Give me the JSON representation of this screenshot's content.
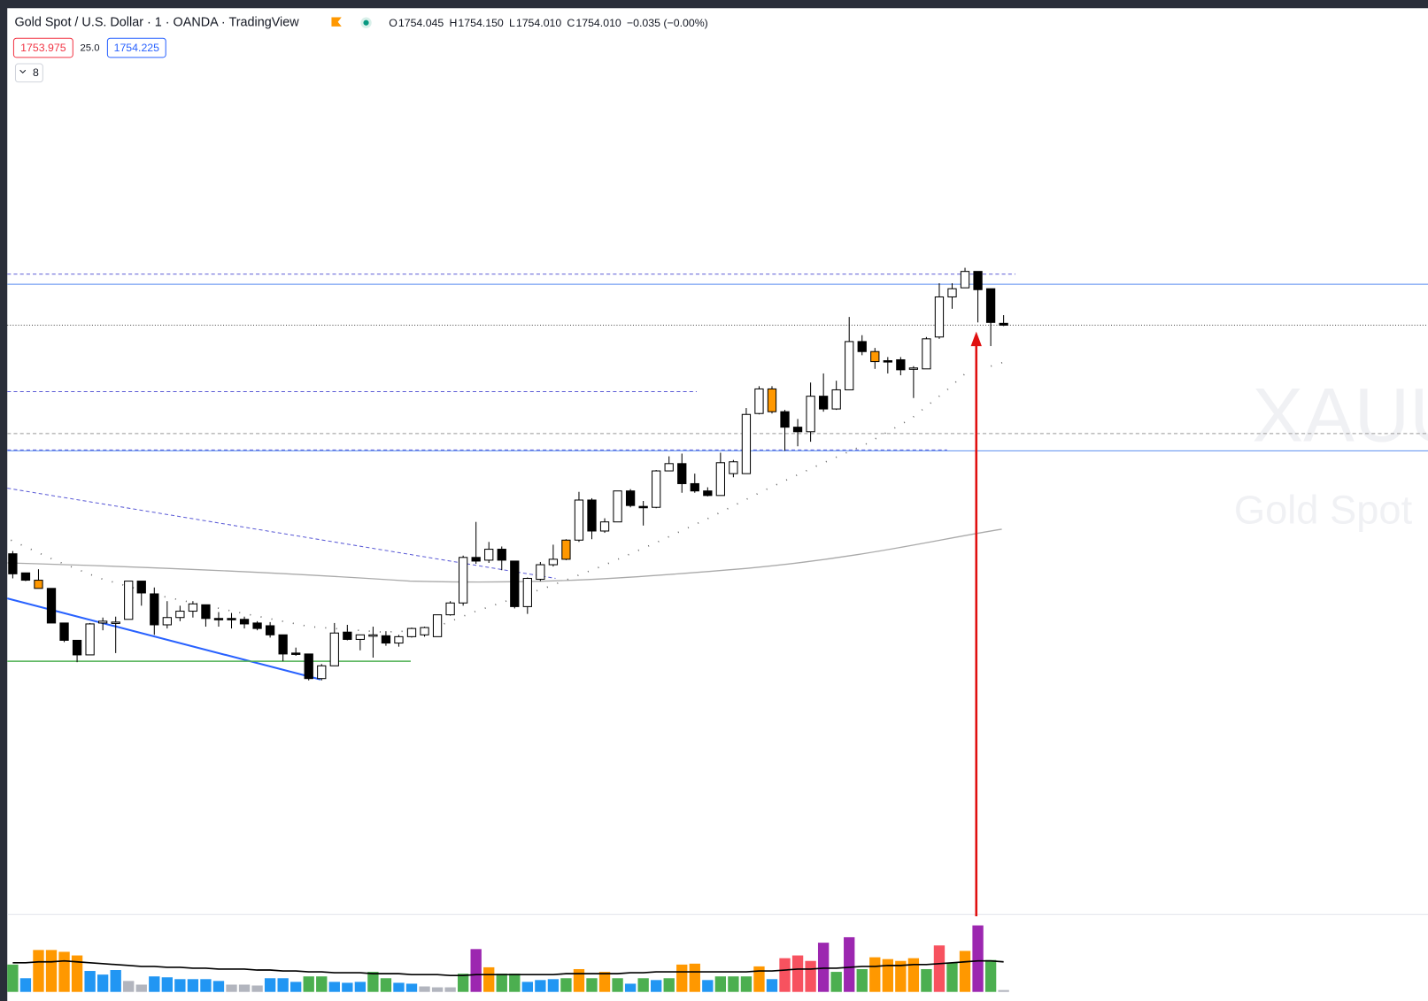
{
  "header": {
    "symbol": "Gold Spot / U.S. Dollar · 1 · OANDA · TradingView",
    "ohlc": [
      {
        "label": "O",
        "value": "1754.045"
      },
      {
        "label": "H",
        "value": "1754.150"
      },
      {
        "label": "L",
        "value": "1754.010"
      },
      {
        "label": "C",
        "value": "1754.010"
      }
    ],
    "change": "−0.035 (−0.00%)",
    "bid": "1753.975",
    "spread": "25.0",
    "ask": "1754.225",
    "indicators": "8"
  },
  "watermark": {
    "ticker": "XAUUSD",
    "name": "Gold Spot"
  },
  "chart_data": {
    "type": "candlestick",
    "open": [
      1751.5,
      1751.29,
      1751.21,
      1751.12,
      1750.74,
      1750.55,
      1750.39,
      1750.74,
      1750.74,
      1750.78,
      1751.2,
      1751.06,
      1750.72,
      1750.8,
      1750.87,
      1750.94,
      1750.79,
      1750.79,
      1750.78,
      1750.74,
      1750.71,
      1750.61,
      1750.41,
      1750.4,
      1750.13,
      1750.27,
      1750.64,
      1750.56,
      1750.61,
      1750.6,
      1750.52,
      1750.59,
      1750.61,
      1750.59,
      1750.83,
      1750.96,
      1751.46,
      1751.43,
      1751.55,
      1751.42,
      1750.92,
      1751.22,
      1751.38,
      1751.44,
      1751.65,
      1752.09,
      1751.75,
      1751.85,
      1752.19,
      1752.02,
      1752.01,
      1752.41,
      1752.49,
      1752.27,
      1752.19,
      1752.14,
      1752.38,
      1752.38,
      1753.04,
      1753.31,
      1753.06,
      1752.89,
      1752.84,
      1753.23,
      1753.09,
      1753.3,
      1753.83,
      1753.72,
      1753.62,
      1753.63,
      1753.54,
      1753.53,
      1753.88,
      1754.32,
      1754.42,
      1754.6,
      1754.41,
      1754.03
    ],
    "high": [
      1751.53,
      1751.29,
      1751.33,
      1751.12,
      1750.74,
      1750.55,
      1750.74,
      1750.8,
      1750.81,
      1751.2,
      1751.2,
      1751.13,
      1750.98,
      1750.93,
      1750.98,
      1750.94,
      1750.86,
      1750.85,
      1750.81,
      1750.76,
      1750.75,
      1750.61,
      1750.47,
      1750.4,
      1750.29,
      1750.74,
      1750.72,
      1750.61,
      1750.7,
      1750.65,
      1750.61,
      1750.69,
      1750.7,
      1750.83,
      1750.98,
      1751.48,
      1751.85,
      1751.63,
      1751.58,
      1751.42,
      1751.24,
      1751.41,
      1751.6,
      1751.66,
      1752.18,
      1752.11,
      1751.89,
      1752.19,
      1752.21,
      1752.08,
      1752.42,
      1752.57,
      1752.6,
      1752.38,
      1752.23,
      1752.61,
      1752.53,
      1753.1,
      1753.34,
      1753.34,
      1753.08,
      1752.98,
      1753.38,
      1753.48,
      1753.4,
      1754.1,
      1753.9,
      1753.76,
      1753.66,
      1753.66,
      1753.56,
      1753.88,
      1754.47,
      1754.47,
      1754.64,
      1754.6,
      1754.41,
      1754.12
    ],
    "low": [
      1751.23,
      1751.2,
      1751.12,
      1750.74,
      1750.53,
      1750.31,
      1750.39,
      1750.66,
      1750.41,
      1750.78,
      1750.93,
      1750.61,
      1750.68,
      1750.76,
      1750.8,
      1750.7,
      1750.7,
      1750.68,
      1750.68,
      1750.66,
      1750.58,
      1750.32,
      1750.38,
      1750.11,
      1750.11,
      1750.27,
      1750.55,
      1750.44,
      1750.36,
      1750.49,
      1750.48,
      1750.58,
      1750.59,
      1750.59,
      1750.82,
      1750.93,
      1751.39,
      1751.4,
      1751.32,
      1750.9,
      1750.84,
      1751.2,
      1751.36,
      1751.43,
      1751.63,
      1751.66,
      1751.73,
      1751.85,
      1752.01,
      1751.81,
      1752.0,
      1752.41,
      1752.17,
      1752.17,
      1752.13,
      1752.14,
      1752.34,
      1752.38,
      1753.03,
      1753.04,
      1752.63,
      1752.68,
      1752.73,
      1753.06,
      1753.08,
      1753.3,
      1753.68,
      1753.53,
      1753.48,
      1753.46,
      1753.21,
      1753.53,
      1753.86,
      1754.19,
      1754.42,
      1754.04,
      1753.78,
      1754.0
    ],
    "close": [
      1751.28,
      1751.21,
      1751.12,
      1750.74,
      1750.55,
      1750.39,
      1750.73,
      1750.76,
      1750.75,
      1751.2,
      1751.07,
      1750.72,
      1750.8,
      1750.87,
      1750.95,
      1750.79,
      1750.78,
      1750.78,
      1750.73,
      1750.68,
      1750.61,
      1750.4,
      1750.4,
      1750.13,
      1750.27,
      1750.63,
      1750.56,
      1750.61,
      1750.6,
      1750.52,
      1750.59,
      1750.68,
      1750.69,
      1750.83,
      1750.96,
      1751.46,
      1751.42,
      1751.55,
      1751.43,
      1750.92,
      1751.23,
      1751.38,
      1751.44,
      1751.65,
      1752.09,
      1751.75,
      1751.85,
      1752.19,
      1752.03,
      1752.01,
      1752.41,
      1752.49,
      1752.27,
      1752.19,
      1752.14,
      1752.5,
      1752.51,
      1753.03,
      1753.31,
      1753.06,
      1752.89,
      1752.84,
      1753.23,
      1753.09,
      1753.3,
      1753.83,
      1753.72,
      1753.61,
      1753.61,
      1753.52,
      1753.53,
      1753.86,
      1754.32,
      1754.41,
      1754.6,
      1754.4,
      1754.04,
      1754.01
    ],
    "colors": [
      "#000000",
      "#000000",
      "#ff9800",
      "#000000",
      "#000000",
      "#000000",
      "#ffffff",
      "#ffffff",
      "#ffffff",
      "#ffffff",
      "#000000",
      "#000000",
      "#ffffff",
      "#ffffff",
      "#ffffff",
      "#000000",
      "#000000",
      "#000000",
      "#000000",
      "#000000",
      "#000000",
      "#000000",
      "#000000",
      "#000000",
      "#ffffff",
      "#ffffff",
      "#000000",
      "#ffffff",
      "#ffffff",
      "#000000",
      "#ffffff",
      "#ffffff",
      "#ffffff",
      "#ffffff",
      "#ffffff",
      "#ffffff",
      "#000000",
      "#ffffff",
      "#000000",
      "#000000",
      "#ffffff",
      "#ffffff",
      "#ffffff",
      "#ff9800",
      "#ffffff",
      "#000000",
      "#ffffff",
      "#ffffff",
      "#000000",
      "#000000",
      "#ffffff",
      "#ffffff",
      "#000000",
      "#000000",
      "#000000",
      "#ffffff",
      "#ffffff",
      "#ffffff",
      "#ffffff",
      "#ff9800",
      "#000000",
      "#000000",
      "#ffffff",
      "#000000",
      "#ffffff",
      "#ffffff",
      "#000000",
      "#ff9800",
      "#000000",
      "#000000",
      "#ffffff",
      "#ffffff",
      "#ffffff",
      "#ffffff",
      "#ffffff",
      "#000000",
      "#000000",
      "#000000"
    ],
    "ylim": [
      1747.58,
      1757.48
    ],
    "volume": {
      "ylim": [
        0,
        84
      ],
      "values": [
        30,
        15,
        46,
        46,
        44,
        40,
        23,
        19,
        24,
        12,
        8,
        17,
        16,
        14,
        14,
        14,
        12,
        8,
        8,
        7,
        15,
        15,
        11,
        17,
        17,
        11,
        10,
        11,
        22,
        15,
        10,
        9,
        6,
        5,
        5,
        20,
        47,
        27,
        20,
        20,
        11,
        13,
        14,
        15,
        25,
        15,
        22,
        15,
        9,
        15,
        13,
        15,
        30,
        31,
        13,
        17,
        17,
        17,
        28,
        14,
        37,
        40,
        34,
        54,
        22,
        60,
        25,
        38,
        36,
        34,
        37,
        25,
        51,
        32,
        45,
        73,
        35,
        2
      ],
      "colors": [
        "#4caf50",
        "#2196f3",
        "#ff9800",
        "#ff9800",
        "#ff9800",
        "#ff9800",
        "#2196f3",
        "#2196f3",
        "#2196f3",
        "#b2b5be",
        "#b2b5be",
        "#2196f3",
        "#2196f3",
        "#2196f3",
        "#2196f3",
        "#2196f3",
        "#2196f3",
        "#b2b5be",
        "#b2b5be",
        "#b2b5be",
        "#2196f3",
        "#2196f3",
        "#2196f3",
        "#4caf50",
        "#4caf50",
        "#2196f3",
        "#2196f3",
        "#2196f3",
        "#4caf50",
        "#4caf50",
        "#2196f3",
        "#2196f3",
        "#b2b5be",
        "#b2b5be",
        "#b2b5be",
        "#4caf50",
        "#9c27b0",
        "#ff9800",
        "#4caf50",
        "#4caf50",
        "#2196f3",
        "#2196f3",
        "#2196f3",
        "#4caf50",
        "#ff9800",
        "#4caf50",
        "#ff9800",
        "#4caf50",
        "#2196f3",
        "#4caf50",
        "#2196f3",
        "#4caf50",
        "#ff9800",
        "#ff9800",
        "#2196f3",
        "#4caf50",
        "#4caf50",
        "#4caf50",
        "#ff9800",
        "#2196f3",
        "#f7525f",
        "#f7525f",
        "#f7525f",
        "#9c27b0",
        "#4caf50",
        "#9c27b0",
        "#4caf50",
        "#ff9800",
        "#ff9800",
        "#ff9800",
        "#ff9800",
        "#4caf50",
        "#f7525f",
        "#4caf50",
        "#ff9800",
        "#9c27b0",
        "#4caf50",
        "#b2b5be"
      ],
      "ma": [
        32,
        32,
        33,
        33,
        34,
        33,
        32,
        31,
        30,
        29,
        28,
        28,
        27,
        27,
        26,
        26,
        25,
        25,
        25,
        24,
        24,
        23,
        23,
        22,
        22,
        21,
        21,
        21,
        20,
        20,
        20,
        19,
        19,
        19,
        18,
        18,
        19,
        19,
        19,
        19,
        19,
        19,
        19,
        20,
        20,
        20,
        20,
        20,
        21,
        21,
        22,
        22,
        22,
        22,
        22,
        22,
        22,
        22,
        23,
        23,
        24,
        25,
        25,
        26,
        26,
        27,
        28,
        28,
        29,
        29,
        30,
        30,
        31,
        32,
        33,
        34,
        34,
        33
      ]
    }
  }
}
